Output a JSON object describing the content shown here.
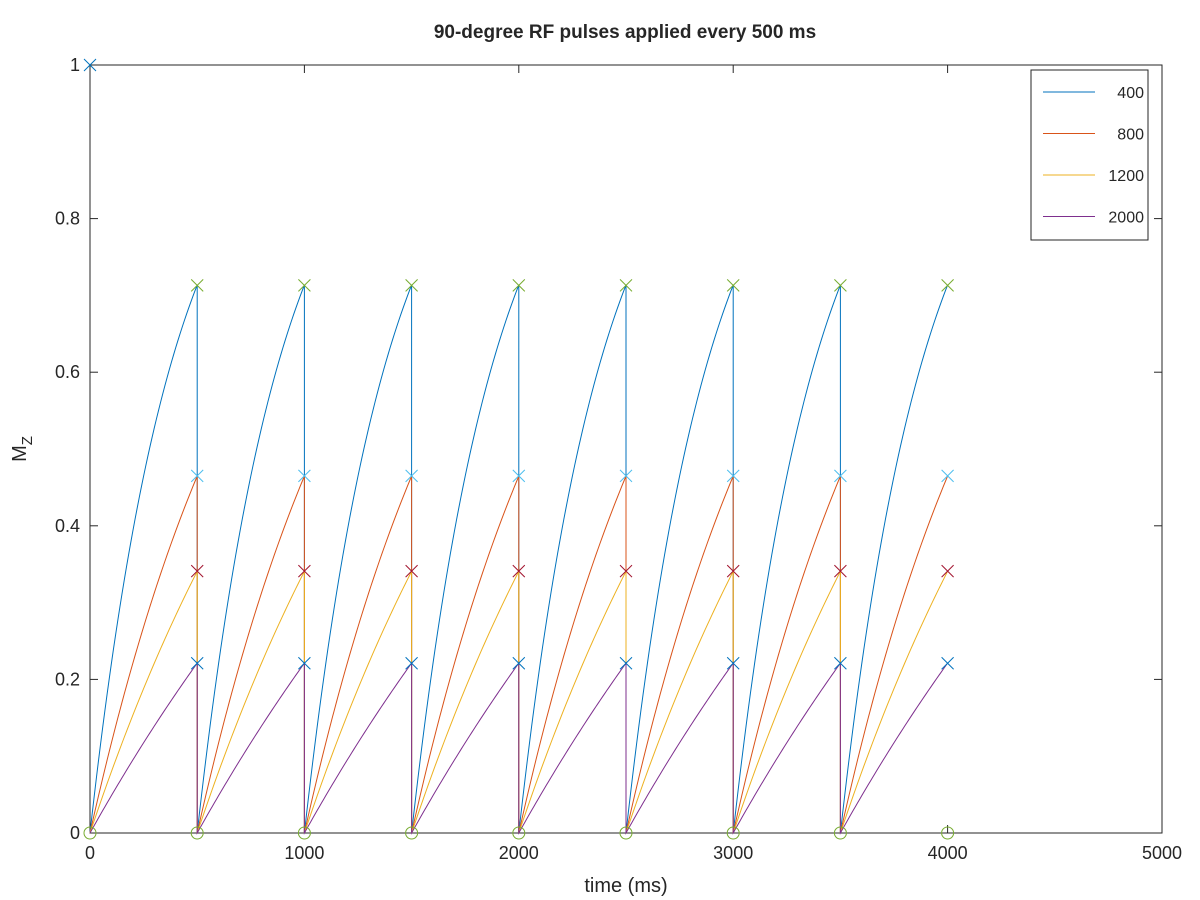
{
  "chart_data": {
    "type": "line",
    "title": "90-degree RF pulses applied every 500 ms",
    "xlabel": "time (ms)",
    "ylabel_main": "M",
    "ylabel_sub": "Z",
    "xlim": [
      0,
      5000
    ],
    "ylim": [
      0,
      1
    ],
    "x_ticks": [
      "0",
      "1000",
      "2000",
      "3000",
      "4000",
      "5000"
    ],
    "y_ticks": [
      "0",
      "0.2",
      "0.4",
      "0.6",
      "0.8",
      "1"
    ],
    "grid": false,
    "legend_position": "top-right",
    "tr_ms": 500,
    "pulse_times_ms": [
      0,
      500,
      1000,
      1500,
      2000,
      2500,
      3000,
      3500,
      4000
    ],
    "series": [
      {
        "name": "400",
        "color": "#0072bd",
        "peak_mz": 0.713,
        "marker_color": "#77ac30"
      },
      {
        "name": "800",
        "color": "#d95319",
        "peak_mz": 0.465,
        "marker_color": "#4dbeee"
      },
      {
        "name": "1200",
        "color": "#edb120",
        "peak_mz": 0.341,
        "marker_color": "#a2142f"
      },
      {
        "name": "2000",
        "color": "#7e2f8e",
        "peak_mz": 0.221,
        "marker_color": "#0072bd"
      }
    ],
    "initial_mz": 1,
    "initial_marker_color": "#0072bd",
    "post_pulse_mz": 0,
    "post_pulse_marker_color": "#77ac30"
  }
}
